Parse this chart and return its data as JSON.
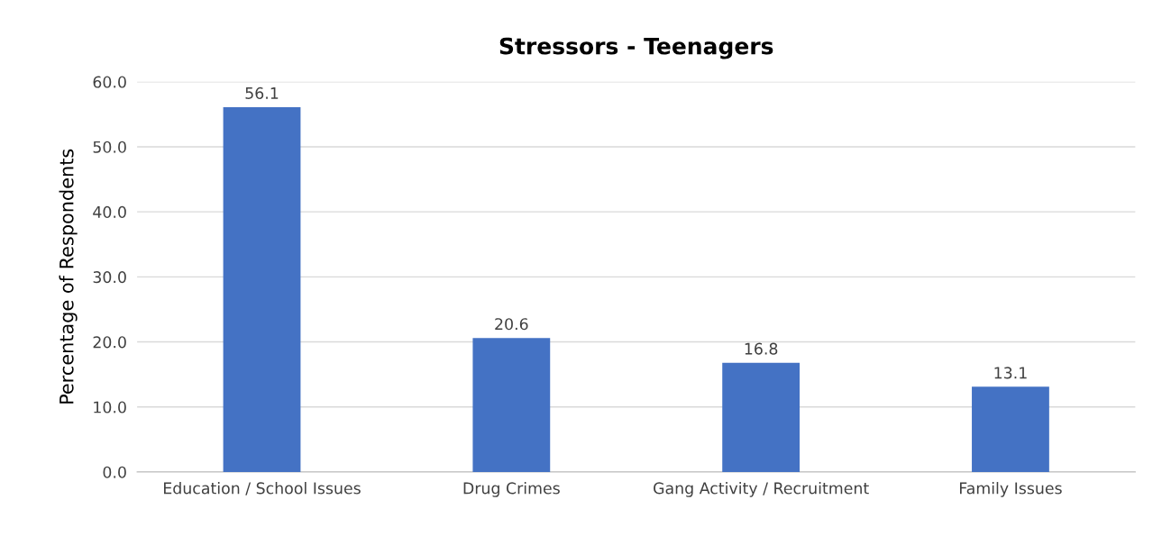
{
  "chart_data": {
    "type": "bar",
    "title": "Stressors - Teenagers",
    "ylabel": "Percentage of Respondents",
    "categories": [
      "Education / School Issues",
      "Drug Crimes",
      "Gang Activity / Recruitment",
      "Family Issues"
    ],
    "values": [
      56.1,
      20.6,
      16.8,
      13.1
    ],
    "color": "#4472c4",
    "ylim": [
      0,
      60
    ],
    "yticks": [
      {
        "value": 0,
        "label": "0.0"
      },
      {
        "value": 10,
        "label": "10.0"
      },
      {
        "value": 20,
        "label": "20.0"
      },
      {
        "value": 30,
        "label": "30.0"
      },
      {
        "value": 40,
        "label": "40.0"
      },
      {
        "value": 50,
        "label": "50.0"
      },
      {
        "value": 60,
        "label": "60.0"
      }
    ],
    "grid": "y",
    "data_labels": true
  }
}
